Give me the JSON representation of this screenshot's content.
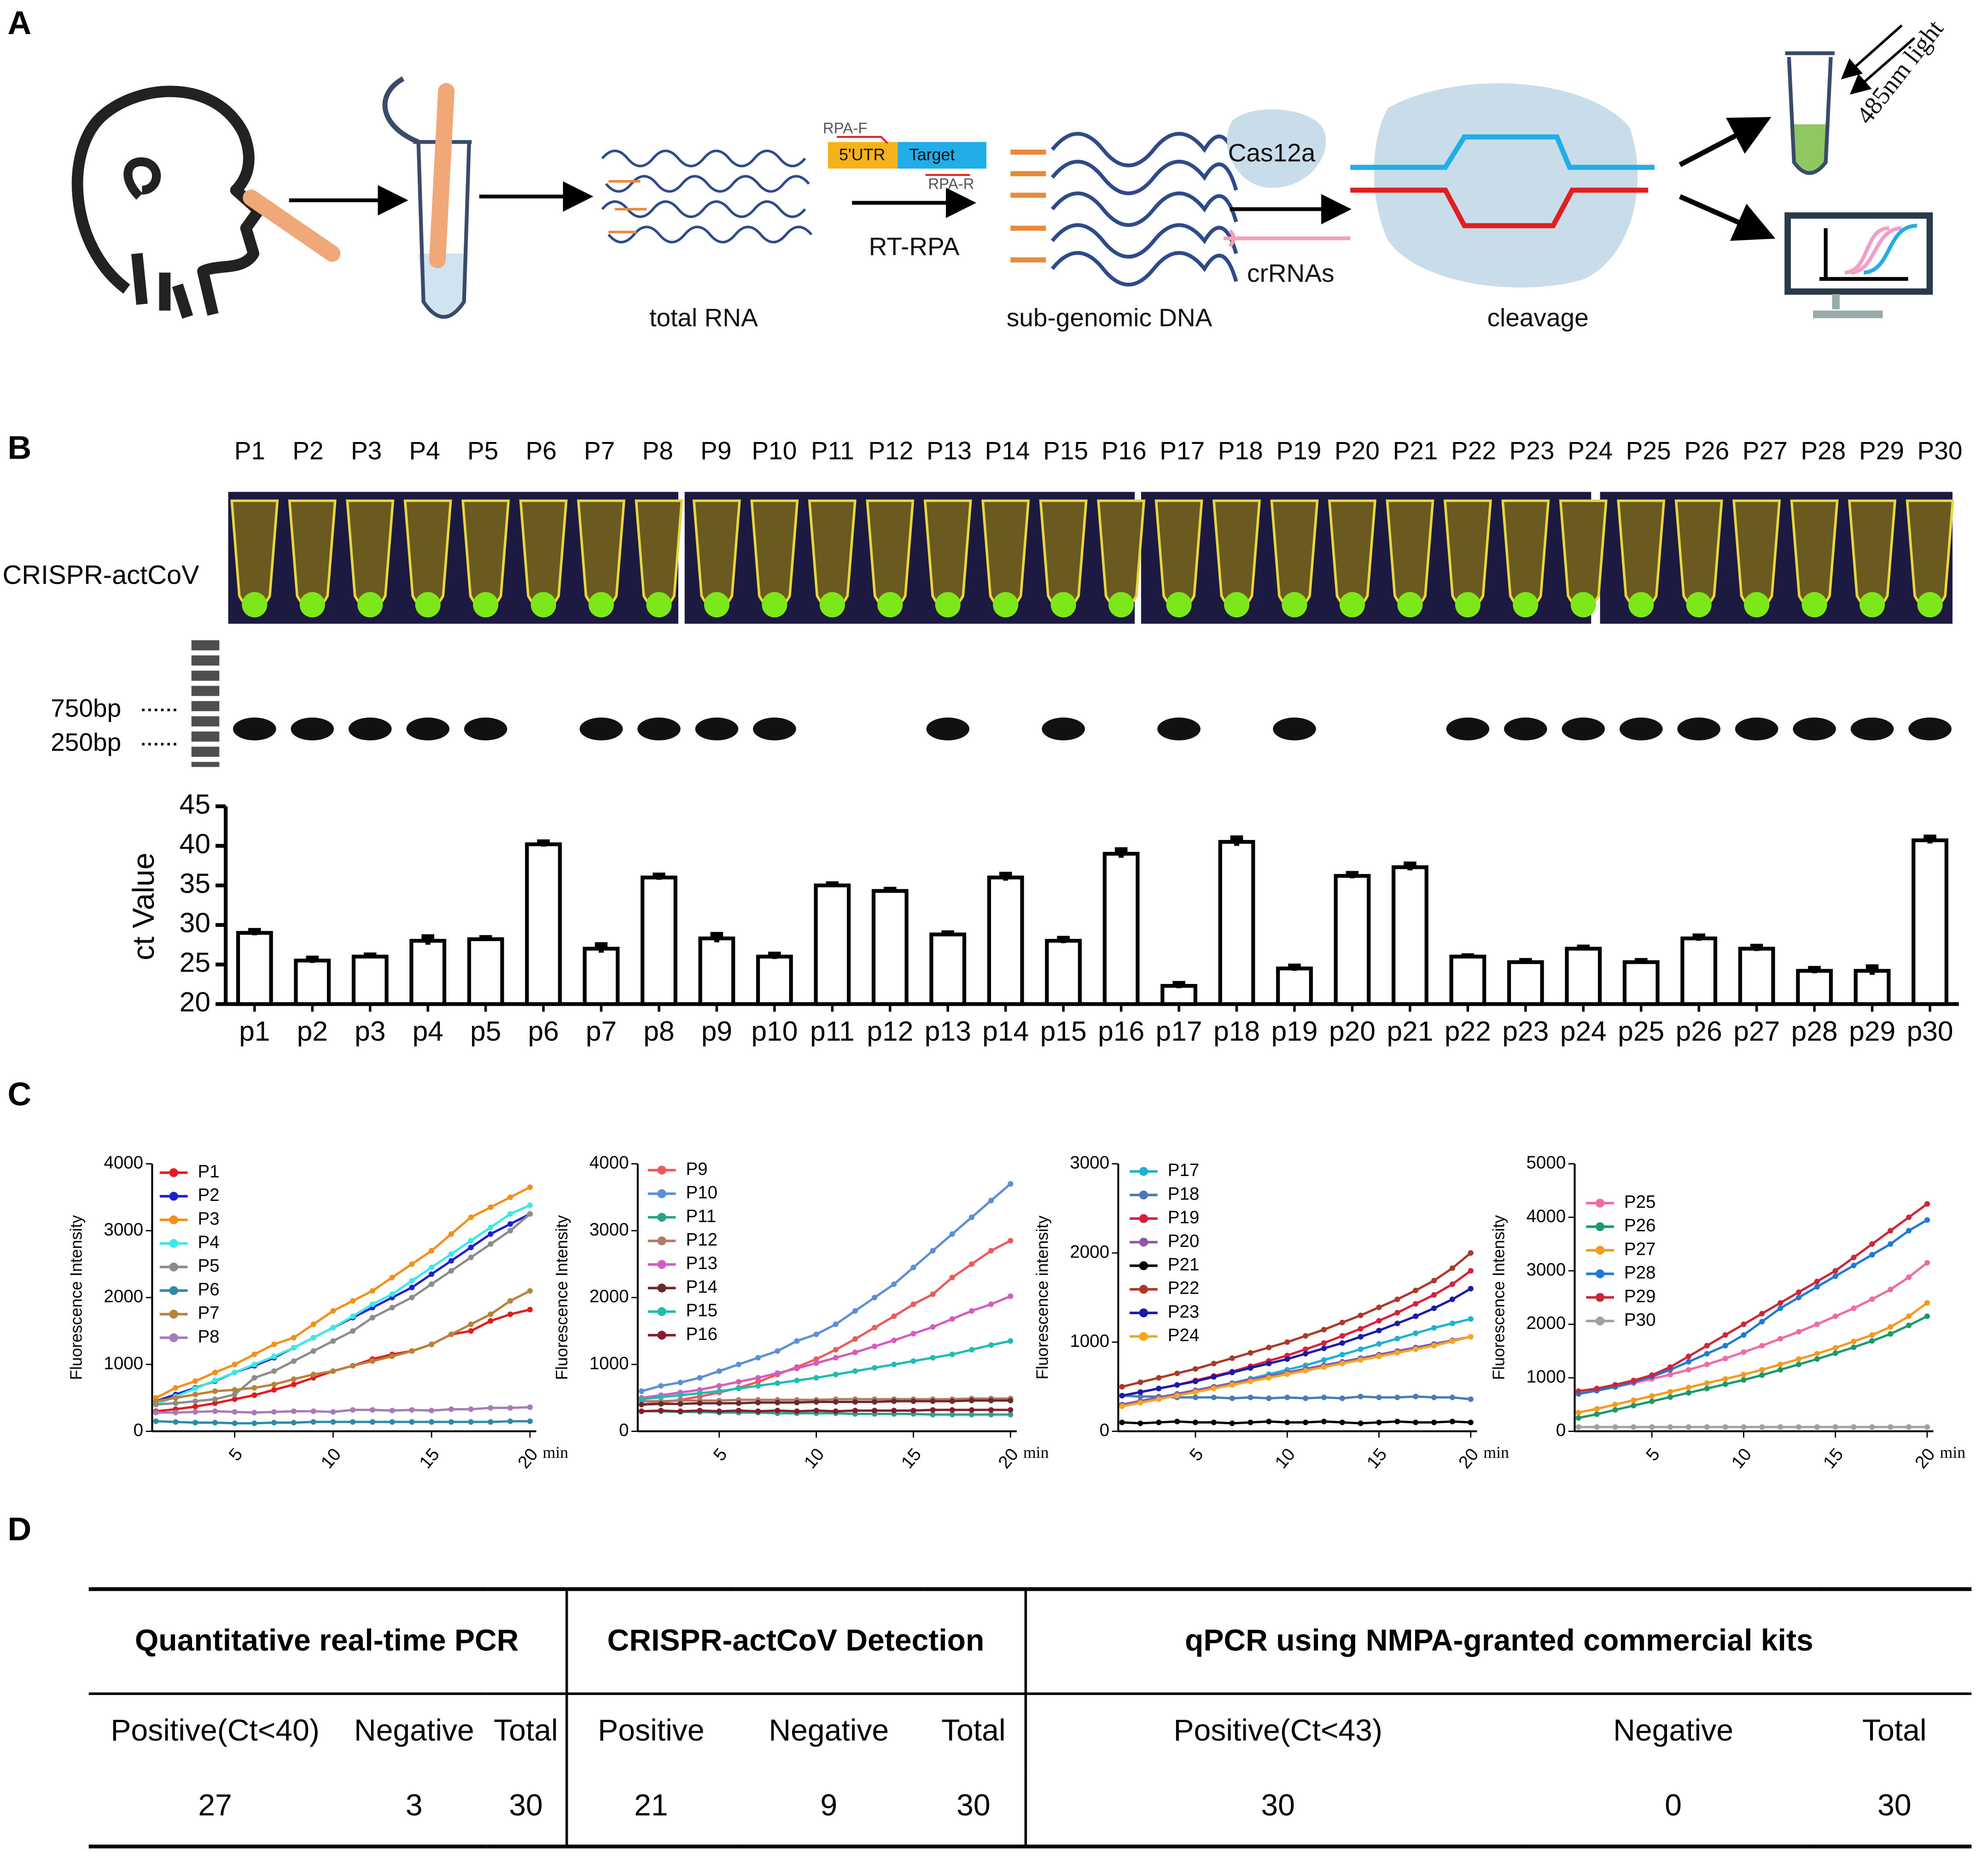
{
  "panel_labels": [
    "A",
    "B",
    "C",
    "D"
  ],
  "diagram": {
    "total_rna": "total RNA",
    "sub_genomic": "sub-genomic DNA",
    "cleavage": "cleavage",
    "rpa_f": "RPA-F",
    "utr": "5'UTR",
    "target": "Target",
    "rpa_r": "RPA-R",
    "rt_rpa": "RT-RPA",
    "cas": "Cas12a",
    "crrna": "crRNAs",
    "light": "485nm light"
  },
  "gel": {
    "row_label": "CRISPR-actCoV",
    "markers": [
      "750bp",
      "250bp"
    ],
    "lanes": [
      "P1",
      "P2",
      "P3",
      "P4",
      "P5",
      "P6",
      "P7",
      "P8",
      "P9",
      "P10",
      "P11",
      "P12",
      "P13",
      "P14",
      "P15",
      "P16",
      "P17",
      "P18",
      "P19",
      "P20",
      "P21",
      "P22",
      "P23",
      "P24",
      "P25",
      "P26",
      "P27",
      "P28",
      "P29",
      "P30"
    ]
  },
  "chart_data": [
    {
      "type": "bar",
      "y_label": "ct Value",
      "color": "#ffffff",
      "categories": [
        "p1",
        "p2",
        "p3",
        "p4",
        "p5",
        "p6",
        "p7",
        "p8",
        "p9",
        "p10",
        "p11",
        "p12",
        "p13",
        "p14",
        "p15",
        "p16",
        "p17",
        "p18",
        "p19",
        "p20",
        "p21",
        "p22",
        "p23",
        "p24",
        "p25",
        "p26",
        "p27",
        "p28",
        "p29",
        "p30"
      ],
      "values": [
        29,
        25.5,
        26,
        28,
        28.2,
        40.2,
        27,
        36,
        28.3,
        26,
        35,
        34.3,
        28.8,
        36,
        28,
        39,
        22.3,
        40.5,
        24.5,
        36.2,
        37.3,
        26,
        25.3,
        27,
        25.3,
        28.3,
        27,
        24.2,
        24.2,
        40.7
      ],
      "errors": [
        0.3,
        0.3,
        0.2,
        0.5,
        0.2,
        0.3,
        0.5,
        0.3,
        0.5,
        0.3,
        0.2,
        0.2,
        0.2,
        0.4,
        0.3,
        0.5,
        0.3,
        0.5,
        0.3,
        0.3,
        0.4,
        0.1,
        0.2,
        0.2,
        0.2,
        0.3,
        0.3,
        0.3,
        0.5,
        0.4
      ],
      "ylim": [
        20,
        45
      ],
      "yticks": [
        20,
        25,
        30,
        35,
        40,
        45
      ]
    },
    {
      "type": "line",
      "y_label": "Fluorescence Intensity",
      "x_label": "min",
      "x": [
        1,
        2,
        3,
        4,
        5,
        6,
        7,
        8,
        9,
        10,
        11,
        12,
        13,
        14,
        15,
        16,
        17,
        18,
        19,
        20
      ],
      "xlim": [
        1,
        20
      ],
      "xticks": [
        5,
        10,
        15,
        20
      ],
      "ylim": [
        0,
        4000
      ],
      "yticks": [
        0,
        1000,
        2000,
        3000,
        4000
      ],
      "series": [
        {
          "name": "P1",
          "color": "#e41a1c",
          "values": [
            300,
            330,
            370,
            420,
            480,
            540,
            620,
            700,
            800,
            900,
            980,
            1080,
            1150,
            1200,
            1300,
            1450,
            1500,
            1650,
            1750,
            1820
          ]
        },
        {
          "name": "P2",
          "color": "#1f1fcf",
          "values": [
            450,
            550,
            650,
            750,
            880,
            980,
            1100,
            1250,
            1400,
            1550,
            1700,
            1850,
            2000,
            2150,
            2350,
            2550,
            2750,
            2950,
            3100,
            3250
          ]
        },
        {
          "name": "P3",
          "color": "#f39019",
          "values": [
            500,
            650,
            750,
            880,
            1000,
            1150,
            1300,
            1400,
            1600,
            1800,
            1950,
            2100,
            2300,
            2500,
            2700,
            2950,
            3200,
            3350,
            3500,
            3650
          ]
        },
        {
          "name": "P4",
          "color": "#3ee8e8",
          "values": [
            400,
            520,
            640,
            760,
            880,
            1000,
            1120,
            1250,
            1400,
            1550,
            1720,
            1900,
            2050,
            2250,
            2450,
            2650,
            2850,
            3050,
            3250,
            3380
          ]
        },
        {
          "name": "P5",
          "color": "#8c8c8c",
          "values": [
            400,
            420,
            450,
            480,
            550,
            800,
            900,
            1050,
            1200,
            1350,
            1500,
            1700,
            1850,
            2000,
            2200,
            2400,
            2600,
            2800,
            3000,
            3250
          ]
        },
        {
          "name": "P6",
          "color": "#2e8ba8",
          "values": [
            150,
            140,
            130,
            130,
            120,
            120,
            130,
            130,
            140,
            140,
            140,
            140,
            140,
            140,
            140,
            140,
            140,
            140,
            150,
            150
          ]
        },
        {
          "name": "P7",
          "color": "#b8823c",
          "values": [
            450,
            500,
            550,
            600,
            620,
            650,
            700,
            780,
            850,
            900,
            980,
            1050,
            1120,
            1200,
            1300,
            1450,
            1600,
            1750,
            1950,
            2100
          ]
        },
        {
          "name": "P8",
          "color": "#a77bb8",
          "values": [
            280,
            280,
            290,
            300,
            290,
            280,
            290,
            300,
            300,
            290,
            320,
            320,
            310,
            320,
            310,
            330,
            330,
            350,
            350,
            360
          ]
        }
      ]
    },
    {
      "type": "line",
      "y_label": "Fluorescence Intensity",
      "x_label": "min",
      "x": [
        1,
        2,
        3,
        4,
        5,
        6,
        7,
        8,
        9,
        10,
        11,
        12,
        13,
        14,
        15,
        16,
        17,
        18,
        19,
        20
      ],
      "xlim": [
        1,
        20
      ],
      "xticks": [
        5,
        10,
        15,
        20
      ],
      "ylim": [
        0,
        4000
      ],
      "yticks": [
        0,
        1000,
        2000,
        3000,
        4000
      ],
      "series": [
        {
          "name": "P9",
          "color": "#ee5a5a",
          "values": [
            400,
            430,
            470,
            520,
            580,
            650,
            740,
            850,
            960,
            1080,
            1220,
            1380,
            1550,
            1720,
            1900,
            2050,
            2300,
            2500,
            2700,
            2850
          ]
        },
        {
          "name": "P10",
          "color": "#5b8fd6",
          "values": [
            600,
            680,
            730,
            800,
            900,
            1000,
            1100,
            1200,
            1350,
            1450,
            1600,
            1800,
            2000,
            2200,
            2450,
            2700,
            2950,
            3200,
            3450,
            3700
          ]
        },
        {
          "name": "P11",
          "color": "#2aa38a",
          "values": [
            300,
            300,
            290,
            290,
            280,
            280,
            280,
            270,
            270,
            270,
            270,
            260,
            260,
            260,
            260,
            250,
            250,
            250,
            250,
            250
          ]
        },
        {
          "name": "P12",
          "color": "#b07a6a",
          "values": [
            450,
            450,
            460,
            460,
            460,
            470,
            470,
            470,
            470,
            470,
            480,
            480,
            480,
            480,
            480,
            480,
            480,
            490,
            490,
            490
          ]
        },
        {
          "name": "P13",
          "color": "#d45bbf",
          "values": [
            500,
            540,
            580,
            620,
            680,
            740,
            800,
            870,
            940,
            1020,
            1100,
            1180,
            1270,
            1360,
            1460,
            1560,
            1680,
            1800,
            1900,
            2020
          ]
        },
        {
          "name": "P14",
          "color": "#6b2a2a",
          "values": [
            400,
            410,
            410,
            420,
            420,
            420,
            430,
            430,
            430,
            440,
            440,
            440,
            440,
            450,
            450,
            450,
            450,
            460,
            460,
            460
          ]
        },
        {
          "name": "P15",
          "color": "#1fbcb0",
          "values": [
            480,
            510,
            540,
            570,
            600,
            640,
            680,
            720,
            760,
            800,
            850,
            900,
            950,
            1000,
            1050,
            1100,
            1150,
            1220,
            1290,
            1350
          ]
        },
        {
          "name": "P16",
          "color": "#8a1a2e",
          "values": [
            300,
            310,
            300,
            310,
            300,
            310,
            300,
            310,
            300,
            310,
            300,
            310,
            310,
            310,
            310,
            320,
            320,
            320,
            320,
            320
          ]
        }
      ]
    },
    {
      "type": "line",
      "y_label": "Fluorescence intensity",
      "x_label": "min",
      "x": [
        1,
        2,
        3,
        4,
        5,
        6,
        7,
        8,
        9,
        10,
        11,
        12,
        13,
        14,
        15,
        16,
        17,
        18,
        19,
        20
      ],
      "xlim": [
        1,
        20
      ],
      "xticks": [
        5,
        10,
        15,
        20
      ],
      "ylim": [
        0,
        3000
      ],
      "yticks": [
        0,
        1000,
        2000,
        3000
      ],
      "series": [
        {
          "name": "P17",
          "color": "#1fb0d6",
          "values": [
            300,
            340,
            380,
            420,
            460,
            500,
            540,
            590,
            640,
            690,
            740,
            800,
            860,
            920,
            980,
            1040,
            1100,
            1160,
            1210,
            1260
          ]
        },
        {
          "name": "P18",
          "color": "#4a7ab8",
          "values": [
            400,
            390,
            390,
            380,
            380,
            380,
            370,
            380,
            370,
            380,
            370,
            380,
            370,
            390,
            380,
            380,
            390,
            380,
            380,
            360
          ]
        },
        {
          "name": "P19",
          "color": "#d8203a",
          "values": [
            400,
            440,
            480,
            520,
            570,
            620,
            670,
            730,
            790,
            850,
            920,
            990,
            1070,
            1150,
            1240,
            1330,
            1430,
            1530,
            1650,
            1800
          ]
        },
        {
          "name": "P20",
          "color": "#8a5aa8",
          "values": [
            300,
            340,
            380,
            420,
            460,
            500,
            540,
            580,
            620,
            660,
            700,
            740,
            780,
            820,
            860,
            900,
            940,
            980,
            1020,
            1060
          ]
        },
        {
          "name": "P21",
          "color": "#000000",
          "values": [
            100,
            90,
            100,
            110,
            100,
            100,
            90,
            100,
            110,
            100,
            100,
            110,
            100,
            90,
            100,
            110,
            100,
            100,
            110,
            100
          ]
        },
        {
          "name": "P22",
          "color": "#a83a2a",
          "values": [
            500,
            550,
            600,
            650,
            700,
            760,
            820,
            880,
            940,
            1000,
            1070,
            1140,
            1220,
            1300,
            1390,
            1480,
            1580,
            1690,
            1830,
            2000
          ]
        },
        {
          "name": "P23",
          "color": "#1a1aa8",
          "values": [
            400,
            440,
            480,
            520,
            560,
            610,
            660,
            710,
            760,
            810,
            870,
            930,
            990,
            1060,
            1130,
            1210,
            1290,
            1380,
            1480,
            1600
          ]
        },
        {
          "name": "P24",
          "color": "#f5a623",
          "values": [
            280,
            320,
            360,
            400,
            440,
            480,
            520,
            560,
            600,
            640,
            680,
            720,
            760,
            800,
            840,
            880,
            920,
            960,
            1010,
            1060
          ]
        }
      ]
    },
    {
      "type": "line",
      "y_label": "Fluorescence Intensity",
      "x_label": "min",
      "x": [
        1,
        2,
        3,
        4,
        5,
        6,
        7,
        8,
        9,
        10,
        11,
        12,
        13,
        14,
        15,
        16,
        17,
        18,
        19,
        20
      ],
      "xlim": [
        1,
        20
      ],
      "xticks": [
        5,
        10,
        15,
        20
      ],
      "ylim": [
        0,
        5000
      ],
      "yticks": [
        0,
        1000,
        2000,
        3000,
        4000,
        5000
      ],
      "series": [
        {
          "name": "P25",
          "color": "#f06aa8",
          "values": [
            700,
            760,
            830,
            900,
            980,
            1060,
            1150,
            1250,
            1360,
            1480,
            1600,
            1730,
            1860,
            2000,
            2150,
            2300,
            2470,
            2650,
            2880,
            3150
          ]
        },
        {
          "name": "P26",
          "color": "#1a9a6a",
          "values": [
            250,
            320,
            400,
            480,
            560,
            640,
            720,
            800,
            880,
            960,
            1050,
            1150,
            1250,
            1350,
            1460,
            1570,
            1690,
            1820,
            1980,
            2150
          ]
        },
        {
          "name": "P27",
          "color": "#f59a1f",
          "values": [
            350,
            420,
            500,
            580,
            660,
            740,
            820,
            900,
            980,
            1060,
            1150,
            1250,
            1350,
            1450,
            1560,
            1680,
            1800,
            1950,
            2150,
            2400
          ]
        },
        {
          "name": "P28",
          "color": "#1f7ad6",
          "values": [
            700,
            760,
            830,
            920,
            1020,
            1150,
            1300,
            1450,
            1600,
            1800,
            2050,
            2300,
            2500,
            2700,
            2900,
            3100,
            3300,
            3500,
            3750,
            3950
          ]
        },
        {
          "name": "P29",
          "color": "#c8283a",
          "values": [
            750,
            800,
            870,
            950,
            1050,
            1200,
            1400,
            1600,
            1800,
            2000,
            2200,
            2400,
            2600,
            2800,
            3000,
            3250,
            3500,
            3750,
            4000,
            4250
          ]
        },
        {
          "name": "P30",
          "color": "#a0a0a0",
          "values": [
            80,
            80,
            80,
            80,
            80,
            80,
            80,
            80,
            80,
            80,
            80,
            80,
            80,
            80,
            80,
            80,
            80,
            80,
            80,
            80
          ]
        }
      ]
    }
  ],
  "table": {
    "groups": [
      "Quantitative real-time PCR",
      "CRISPR-actCoV Detection",
      "qPCR using NMPA-granted commercial kits"
    ],
    "columns": [
      "Positive(Ct<40)",
      "Negative",
      "Total",
      "Positive",
      "Negative",
      "Total",
      "Positive(Ct<43)",
      "Negative",
      "Total"
    ],
    "rows": [
      [
        27,
        3,
        30,
        21,
        9,
        30,
        30,
        0,
        30
      ]
    ]
  }
}
